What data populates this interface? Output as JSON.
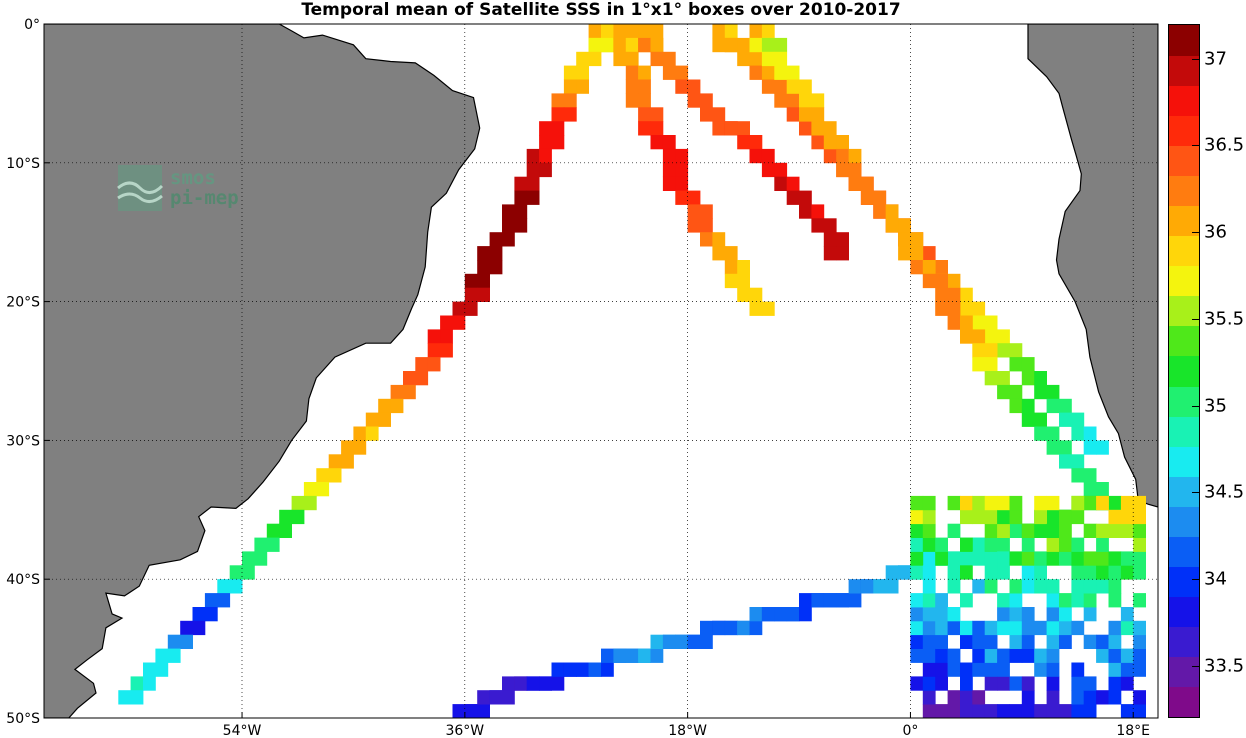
{
  "chart_data": {
    "type": "heatmap",
    "title": "Temporal mean of Satellite SSS in 1°x1° boxes over 2010-2017",
    "xlabel": "",
    "ylabel": "",
    "xlim": [
      -70,
      20
    ],
    "ylim": [
      -50,
      0
    ],
    "x_ticks": [
      {
        "value": -54,
        "label": "54°W"
      },
      {
        "value": -36,
        "label": "36°W"
      },
      {
        "value": -18,
        "label": "18°W"
      },
      {
        "value": 0,
        "label": "0°"
      },
      {
        "value": 18,
        "label": "18°E"
      }
    ],
    "y_ticks": [
      {
        "value": 0,
        "label": "0°"
      },
      {
        "value": -10,
        "label": "10°S"
      },
      {
        "value": -20,
        "label": "20°S"
      },
      {
        "value": -30,
        "label": "30°S"
      },
      {
        "value": -40,
        "label": "40°S"
      },
      {
        "value": -50,
        "label": "50°S"
      }
    ],
    "grid": true,
    "colorbar": {
      "range": [
        33.2,
        37.2
      ],
      "ticks": [
        33.5,
        34,
        34.5,
        35,
        35.5,
        36,
        36.5,
        37
      ],
      "tick_labels": [
        "33.5",
        "34",
        "34.5",
        "35",
        "35.5",
        "36",
        "36.5",
        "37"
      ]
    },
    "colormap": [
      "#7f0a8a",
      "#6318a8",
      "#3a1bd0",
      "#1512e8",
      "#0030f8",
      "#0a5ef5",
      "#1c8cf0",
      "#22b6ee",
      "#18ebf0",
      "#19f2b4",
      "#20f070",
      "#18e52a",
      "#4fe81a",
      "#a8f01a",
      "#f4f40e",
      "#ffd60a",
      "#ffaa05",
      "#ff7c10",
      "#ff5514",
      "#ff2a0a",
      "#f5110a",
      "#c30a0a",
      "#8c0000"
    ],
    "tracks": [
      {
        "name": "track_A",
        "lat": [
          -0.5,
          -2,
          -4,
          -6,
          -8,
          -10,
          -12,
          -14,
          -16,
          -18,
          -20,
          -22,
          -24,
          -26,
          -28,
          -30,
          -32,
          -34,
          -36,
          -38,
          -40,
          -42,
          -44,
          -46,
          -48,
          -49.5
        ],
        "lon": [
          -25.5,
          -26,
          -27.5,
          -28.5,
          -29.5,
          -30.5,
          -31.5,
          -32.5,
          -33.5,
          -35,
          -36,
          -37.5,
          -39,
          -41,
          -43,
          -45,
          -47,
          -49,
          -51,
          -53,
          -55,
          -57,
          -59,
          -61,
          -63,
          -64.5
        ],
        "sss": [
          36.0,
          35.8,
          35.9,
          36.3,
          36.8,
          36.9,
          37.0,
          37.1,
          37.1,
          37.1,
          37.0,
          36.8,
          36.6,
          36.4,
          36.1,
          36.0,
          36.1,
          35.8,
          35.2,
          35.1,
          35.0,
          34.2,
          33.8,
          34.7,
          34.8,
          34.6
        ]
      },
      {
        "name": "track_B",
        "lat": [
          -0.5,
          -2,
          -4,
          -6,
          -8,
          -10,
          -12,
          -14,
          -16,
          -18,
          -20,
          -22
        ],
        "lon": [
          -23.5,
          -23.5,
          -23,
          -22.5,
          -21.5,
          -20,
          -19.5,
          -18,
          -16.5,
          -15,
          -13.5,
          -12.5
        ],
        "sss": [
          36.1,
          36.0,
          36.2,
          36.3,
          36.6,
          36.8,
          36.8,
          36.5,
          36.2,
          36.0,
          35.9,
          36.0
        ]
      },
      {
        "name": "track_C",
        "lat": [
          -0.5,
          -2,
          -4,
          -6,
          -8,
          -10,
          -12,
          -14,
          -16,
          -18
        ],
        "lon": [
          -22,
          -21.5,
          -19.5,
          -17.5,
          -15,
          -13,
          -11,
          -9,
          -7,
          -5.5
        ],
        "sss": [
          36.1,
          36.2,
          36.3,
          36.4,
          36.5,
          36.8,
          36.9,
          36.9,
          37.0,
          36.8
        ]
      },
      {
        "name": "track_D",
        "lat": [
          -0.5,
          -2,
          -4,
          -6,
          -8,
          -10,
          -12,
          -14,
          -16,
          -18,
          -20,
          -22,
          -24,
          -26,
          -28,
          -30,
          -32
        ],
        "lon": [
          -16,
          -15,
          -13,
          -11,
          -9,
          -7,
          -5,
          -3,
          -1,
          1,
          3,
          5,
          7,
          9,
          11,
          13,
          15
        ],
        "sss": [
          36.0,
          36.1,
          36.2,
          36.3,
          36.4,
          36.4,
          36.6,
          36.7,
          36.5,
          36.3,
          35.9,
          35.8,
          35.6,
          35.3,
          35.0,
          34.8,
          34.6
        ]
      },
      {
        "name": "track_E",
        "lat": [
          -0.5,
          -2,
          -4,
          -6,
          -8,
          -10,
          -12,
          -14,
          -16,
          -18,
          -20,
          -22,
          -24,
          -26,
          -28,
          -30,
          -32,
          -34,
          -36
        ],
        "lon": [
          -13,
          -12,
          -10.5,
          -9,
          -7.5,
          -6,
          -4.5,
          -2.5,
          -1,
          0.5,
          2,
          3.5,
          5,
          6.5,
          8,
          10,
          12,
          14,
          16
        ],
        "sss": [
          36.0,
          35.6,
          35.8,
          35.9,
          36.1,
          36.2,
          36.3,
          36.2,
          36.1,
          36.2,
          36.3,
          36.2,
          35.9,
          35.6,
          35.3,
          35.0,
          34.9,
          35.1,
          35.4
        ]
      },
      {
        "name": "track_F",
        "lat": [
          -49.5,
          -48,
          -47,
          -46,
          -45,
          -44,
          -43,
          -42,
          -41,
          -40,
          -39,
          -38,
          -37,
          -36,
          -35,
          -34
        ],
        "lon": [
          -37,
          -33,
          -29,
          -25,
          -21,
          -17,
          -13,
          -9,
          -5,
          -2,
          1,
          4,
          7,
          10,
          13,
          15
        ],
        "sss": [
          33.8,
          33.6,
          33.9,
          34.2,
          34.5,
          34.1,
          34.3,
          34.0,
          34.3,
          34.5,
          34.7,
          34.9,
          35.0,
          35.2,
          35.3,
          35.6
        ]
      }
    ],
    "patch": {
      "name": "agulhas_region",
      "lon_range": [
        0.5,
        18.5
      ],
      "lat_range": [
        -49.5,
        -34.5
      ]
    }
  },
  "branding": {
    "logo_line1": "smos",
    "logo_line2": "pi-mep"
  },
  "colors": {
    "land": "#808080",
    "coast": "#000000",
    "grid": "#000000",
    "ocean": "#ffffff"
  }
}
